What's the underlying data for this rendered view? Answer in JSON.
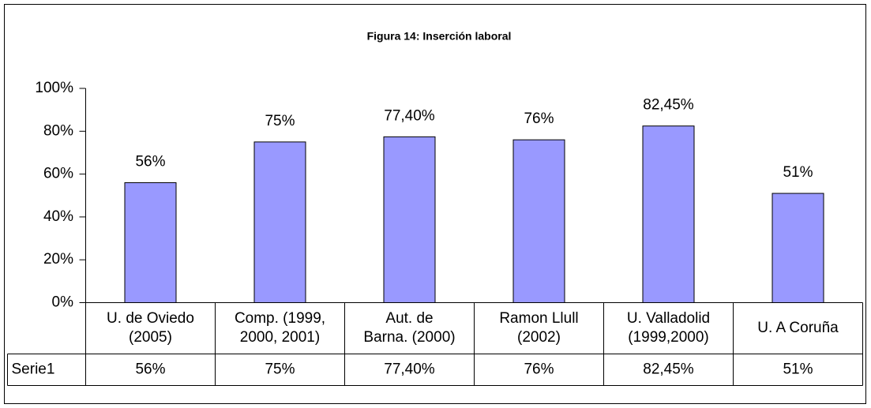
{
  "chart_data": {
    "type": "bar",
    "title": "Figura 14: Inserción laboral",
    "categories": [
      "U. de Oviedo\n(2005)",
      "Comp. (1999,\n2000, 2001)",
      "Aut. de\nBarna. (2000)",
      "Ramon Llull\n(2002)",
      "U. Valladolid\n(1999,2000)",
      "U. A Coruña"
    ],
    "series": [
      {
        "name": "Serie1",
        "color": "#9999ff",
        "values": [
          56,
          75,
          77.4,
          76,
          82.45,
          51
        ],
        "value_labels": [
          "56%",
          "75%",
          "77,40%",
          "76%",
          "82,45%",
          "51%"
        ]
      }
    ],
    "ylim": [
      0,
      100
    ],
    "yticks": [
      {
        "value": 0,
        "label": "0%"
      },
      {
        "value": 20,
        "label": "20%"
      },
      {
        "value": 40,
        "label": "40%"
      },
      {
        "value": 60,
        "label": "60%"
      },
      {
        "value": 80,
        "label": "80%"
      },
      {
        "value": 100,
        "label": "100%"
      }
    ],
    "grid": false
  }
}
